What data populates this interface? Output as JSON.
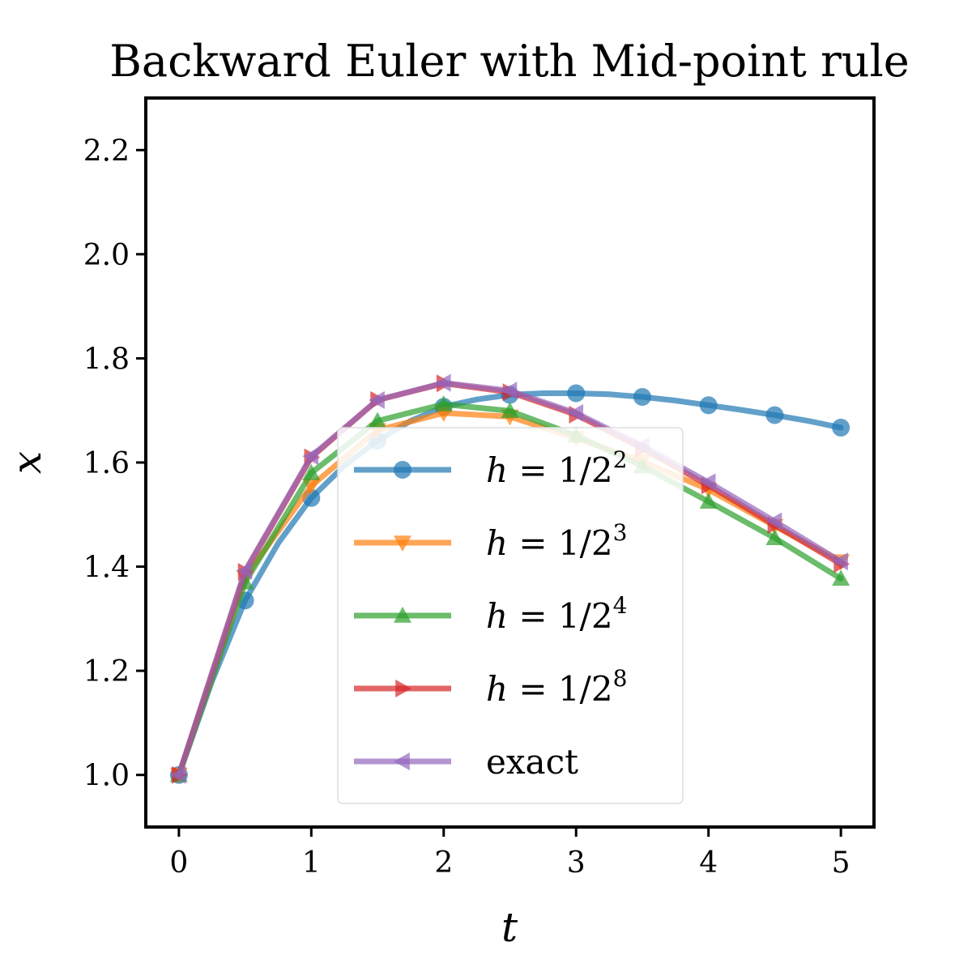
{
  "chart_data": {
    "type": "line",
    "title": "Backward Euler with Mid-point rule",
    "xlabel": "t",
    "ylabel": "x",
    "xlim": [
      -0.25,
      5.25
    ],
    "ylim": [
      0.9,
      2.3
    ],
    "xticks": [
      0,
      1,
      2,
      3,
      4,
      5
    ],
    "xtick_labels": [
      "0",
      "1",
      "2",
      "3",
      "4",
      "5"
    ],
    "yticks": [
      1.0,
      1.2,
      1.4,
      1.6,
      1.8,
      2.0,
      2.2
    ],
    "ytick_labels": [
      "1.0",
      "1.2",
      "1.4",
      "1.6",
      "1.8",
      "2.0",
      "2.2"
    ],
    "grid": false,
    "legend_position": "center-right",
    "series": [
      {
        "name": "h = 1/2^2",
        "legend": {
          "prefix": "h",
          "mid": " = 1/2",
          "sup": "2"
        },
        "color": "#1f77b4",
        "marker": "circle",
        "x": [
          0,
          0.25,
          0.5,
          0.75,
          1.0,
          1.25,
          1.5,
          1.75,
          2.0,
          2.25,
          2.5,
          2.75,
          3.0,
          3.25,
          3.5,
          3.75,
          4.0,
          4.25,
          4.5,
          4.75,
          5.0
        ],
        "y": [
          1.0,
          1.18,
          1.335,
          1.445,
          1.532,
          1.594,
          1.642,
          1.68,
          1.707,
          1.721,
          1.73,
          1.733,
          1.733,
          1.731,
          1.726,
          1.719,
          1.71,
          1.701,
          1.691,
          1.68,
          1.667
        ],
        "marker_every": 2
      },
      {
        "name": "h = 1/2^3",
        "legend": {
          "prefix": "h",
          "mid": " = 1/2",
          "sup": "3"
        },
        "color": "#ff7f0e",
        "marker": "triangle-down",
        "x": [
          0,
          0.5,
          1.0,
          1.5,
          2.0,
          2.5,
          3.0,
          3.5,
          4.0,
          4.5,
          5.0
        ],
        "y": [
          1.0,
          1.38,
          1.555,
          1.662,
          1.695,
          1.688,
          1.647,
          1.602,
          1.548,
          1.478,
          1.41
        ],
        "marker_every": 1
      },
      {
        "name": "h = 1/2^4",
        "legend": {
          "prefix": "h",
          "mid": " = 1/2",
          "sup": "4"
        },
        "color": "#2ca02c",
        "marker": "triangle-up",
        "x": [
          0,
          0.5,
          1.0,
          1.5,
          2.0,
          2.5,
          3.0,
          3.5,
          4.0,
          4.5,
          5.0
        ],
        "y": [
          1.0,
          1.37,
          1.58,
          1.68,
          1.712,
          1.699,
          1.652,
          1.593,
          1.525,
          1.455,
          1.377
        ],
        "marker_every": 1
      },
      {
        "name": "h = 1/2^8",
        "legend": {
          "prefix": "h",
          "mid": " = 1/2",
          "sup": "8"
        },
        "color": "#d62728",
        "marker": "triangle-right",
        "x": [
          0,
          0.5,
          1.0,
          1.5,
          2.0,
          2.5,
          3.0,
          3.5,
          4.0,
          4.5,
          5.0
        ],
        "y": [
          1.0,
          1.39,
          1.61,
          1.72,
          1.752,
          1.735,
          1.692,
          1.627,
          1.556,
          1.48,
          1.405
        ],
        "marker_every": 1
      },
      {
        "name": "exact",
        "legend": {
          "prefix": "",
          "mid": "exact",
          "sup": ""
        },
        "color": "#9467bd",
        "marker": "triangle-left",
        "x": [
          0,
          0.5,
          1.0,
          1.5,
          2.0,
          2.5,
          3.0,
          3.5,
          4.0,
          4.5,
          5.0
        ],
        "y": [
          1.0,
          1.392,
          1.612,
          1.72,
          1.753,
          1.738,
          1.695,
          1.632,
          1.562,
          1.487,
          1.41
        ],
        "marker_every": 1
      }
    ]
  }
}
